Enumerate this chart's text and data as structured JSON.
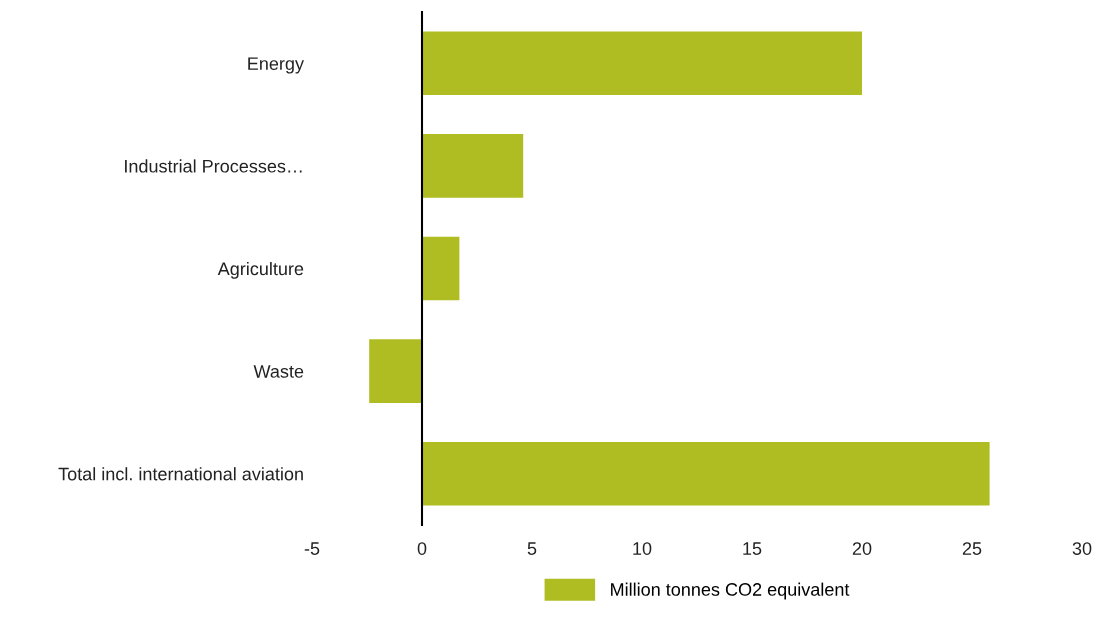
{
  "chart_data": {
    "type": "bar",
    "orientation": "horizontal",
    "categories": [
      "Energy",
      "Industrial Processes…",
      "Agriculture",
      "Waste",
      "Total incl. international aviation"
    ],
    "series": [
      {
        "name": "Million tonnes CO2 equivalent",
        "color": "#afbd22",
        "values": [
          20.0,
          4.6,
          1.7,
          -2.4,
          25.8
        ]
      }
    ],
    "xlim": [
      -5,
      30
    ],
    "xticks": [
      -5,
      0,
      5,
      10,
      15,
      20,
      25,
      30
    ],
    "legend": "bottom"
  }
}
